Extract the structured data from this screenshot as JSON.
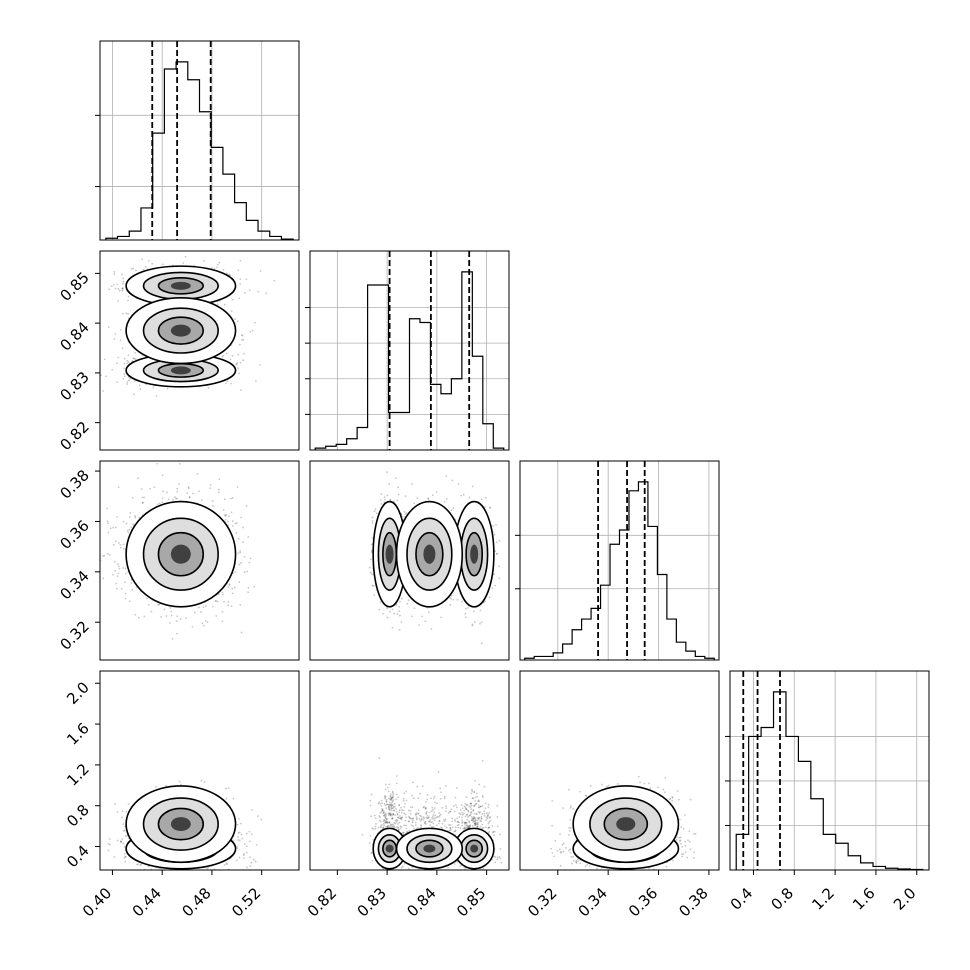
{
  "chart_data": {
    "type": "corner",
    "parameters": [
      {
        "ticks": [
          0.4,
          0.44,
          0.48,
          0.52
        ],
        "tick_labels": [
          "0.40",
          "0.44",
          "0.48",
          "0.52"
        ],
        "range": [
          0.39,
          0.55
        ],
        "quantiles": [
          0.432,
          0.452,
          0.479
        ],
        "mixture": [
          {
            "w": 1.0,
            "m": 0.455,
            "s": 0.02
          }
        ]
      },
      {
        "ticks": [
          0.82,
          0.83,
          0.84,
          0.85
        ],
        "tick_labels": [
          "0.82",
          "0.83",
          "0.84",
          "0.85"
        ],
        "range": [
          0.8145,
          0.8545
        ],
        "quantiles": [
          0.8305,
          0.8388,
          0.8465
        ],
        "mixture": [
          {
            "w": 0.37,
            "m": 0.8305,
            "s": 0.0015
          },
          {
            "w": 0.3,
            "m": 0.8385,
            "s": 0.003
          },
          {
            "w": 0.33,
            "m": 0.8475,
            "s": 0.0018
          }
        ]
      },
      {
        "ticks": [
          0.32,
          0.34,
          0.36,
          0.38
        ],
        "tick_labels": [
          "0.32",
          "0.34",
          "0.36",
          "0.38"
        ],
        "range": [
          0.305,
          0.384
        ],
        "quantiles": [
          0.336,
          0.3475,
          0.3545
        ],
        "mixture": [
          {
            "w": 1.0,
            "m": 0.347,
            "s": 0.0095
          }
        ]
      },
      {
        "ticks": [
          0.4,
          0.8,
          1.2,
          1.6,
          2.0
        ],
        "tick_labels": [
          "0.4",
          "0.8",
          "1.2",
          "1.6",
          "2.0"
        ],
        "range": [
          0.17,
          2.12
        ],
        "quantiles": [
          0.3,
          0.44,
          0.66
        ],
        "mixture": [
          {
            "w": 0.6,
            "m": 0.38,
            "s": 0.09
          },
          {
            "w": 0.4,
            "m": 0.62,
            "s": 0.17
          }
        ]
      }
    ],
    "hist_counts": [
      [
        1,
        2,
        5,
        18,
        60,
        96,
        100,
        90,
        72,
        52,
        37,
        21,
        11,
        5,
        2,
        0.5
      ],
      [
        1,
        2,
        3,
        6,
        12,
        88,
        88,
        20,
        20,
        70,
        68,
        35,
        30,
        38,
        95,
        50,
        14,
        1
      ],
      [
        1,
        2,
        2,
        4,
        9,
        17,
        23,
        29,
        42,
        65,
        73,
        95,
        100,
        75,
        48,
        23,
        10,
        5,
        2,
        1
      ],
      [
        20,
        75,
        80,
        100,
        75,
        61,
        40,
        20,
        15,
        8,
        4,
        2,
        1,
        0.6,
        0.3
      ]
    ],
    "hist_y_ticks": [
      [
        30,
        70
      ],
      [
        20,
        40,
        60,
        80
      ],
      [
        40,
        70
      ],
      [
        25,
        50,
        75
      ]
    ],
    "grid": true,
    "title": "",
    "xlabel": "",
    "ylabel": ""
  }
}
